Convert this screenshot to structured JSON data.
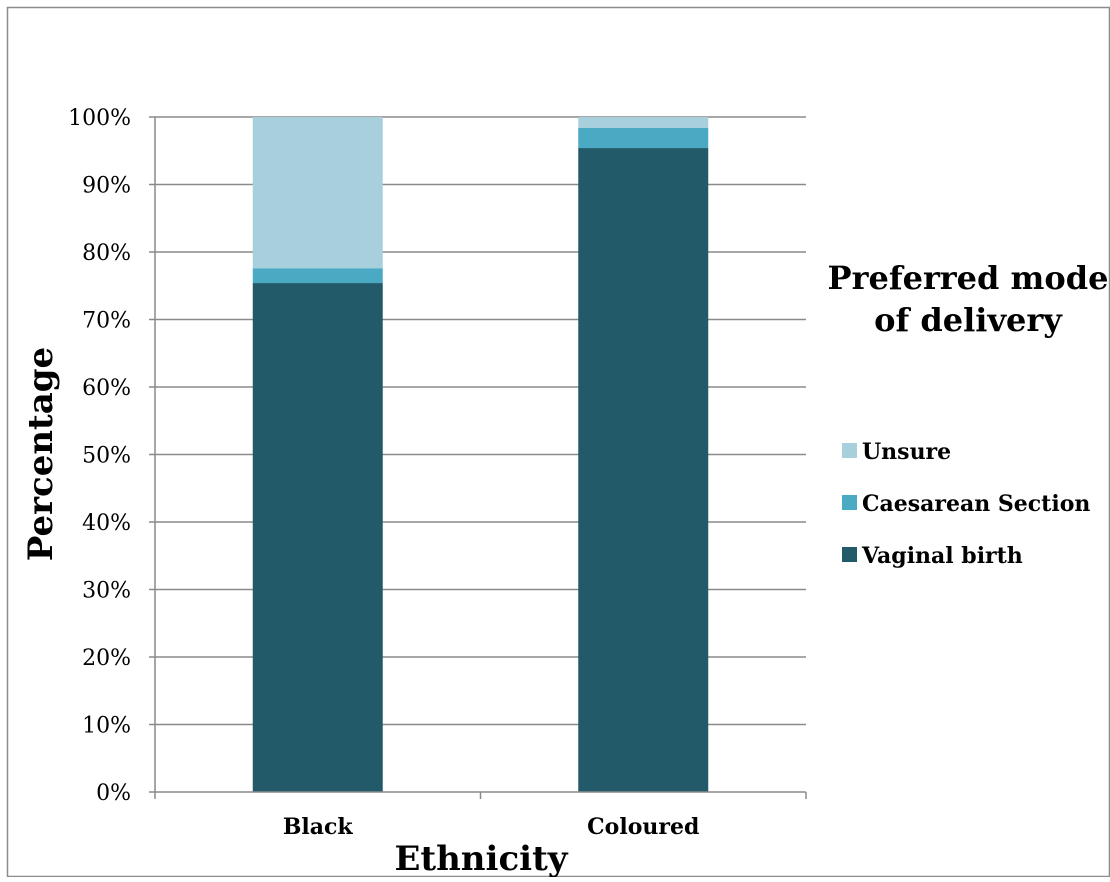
{
  "chart_data": {
    "type": "bar",
    "stacked": true,
    "title": "",
    "xlabel": "Ethnicity",
    "ylabel": "Percentage",
    "categories": [
      "Black",
      "Coloured"
    ],
    "series": [
      {
        "name": "Vaginal birth",
        "values": [
          75.4,
          95.4
        ],
        "color": "#225a69"
      },
      {
        "name": "Caesarean Section",
        "values": [
          2.2,
          3.0
        ],
        "color": "#4aaac4"
      },
      {
        "name": "Unsure",
        "values": [
          22.4,
          1.6
        ],
        "color": "#a8d0dc"
      }
    ],
    "ylim": [
      0,
      100
    ],
    "yticks": [
      "0%",
      "10%",
      "20%",
      "30%",
      "40%",
      "50%",
      "60%",
      "70%",
      "80%",
      "90%",
      "100%"
    ],
    "grid": true,
    "legend": {
      "title": "Preferred mode of delivery",
      "title_lines": [
        "Preferred mode",
        "of delivery"
      ],
      "position": "right",
      "entries": [
        "Unsure",
        "Caesarean Section",
        "Vaginal birth"
      ]
    }
  }
}
